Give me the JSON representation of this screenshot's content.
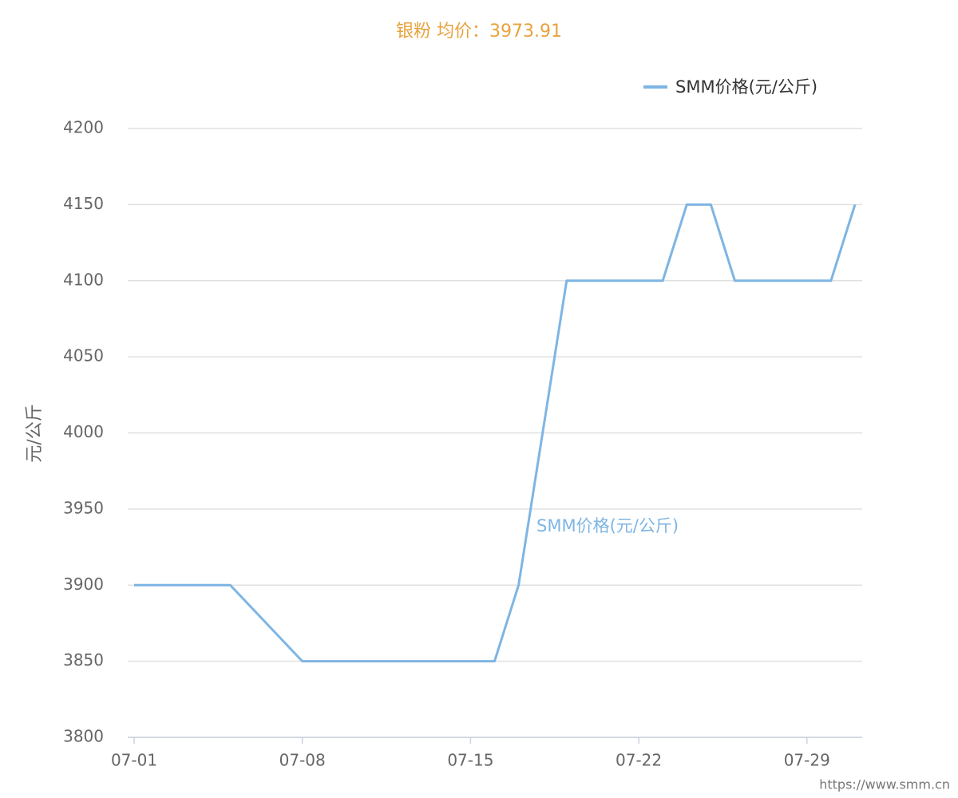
{
  "chart_data": {
    "type": "line",
    "title": "银粉 均价：3973.91",
    "y_label": "元/公斤",
    "footer": "https://www.smm.cn",
    "x": [
      1,
      2,
      3,
      4,
      5,
      8,
      9,
      10,
      11,
      12,
      15,
      16,
      17,
      18,
      19,
      22,
      23,
      24,
      25,
      26,
      29,
      30,
      31
    ],
    "xlim": [
      1,
      31.3
    ],
    "xticks": [
      {
        "value": 1,
        "label": "07-01"
      },
      {
        "value": 8,
        "label": "07-08"
      },
      {
        "value": 15,
        "label": "07-15"
      },
      {
        "value": 22,
        "label": "07-22"
      },
      {
        "value": 29,
        "label": "07-29"
      }
    ],
    "series": [
      {
        "name": "SMM价格(元/公斤)",
        "color": "#7eb5e3",
        "values": [
          3900,
          3900,
          3900,
          3900,
          3900,
          3850,
          3850,
          3850,
          3850,
          3850,
          3850,
          3850,
          3900,
          4000,
          4100,
          4100,
          4100,
          4150,
          4150,
          4100,
          4100,
          4100,
          4150
        ]
      }
    ],
    "ylim": [
      3800,
      4200
    ],
    "yticks": [
      3800,
      3850,
      3900,
      3950,
      4000,
      4050,
      4100,
      4150,
      4200
    ],
    "grid": true,
    "legend": "top-right"
  }
}
